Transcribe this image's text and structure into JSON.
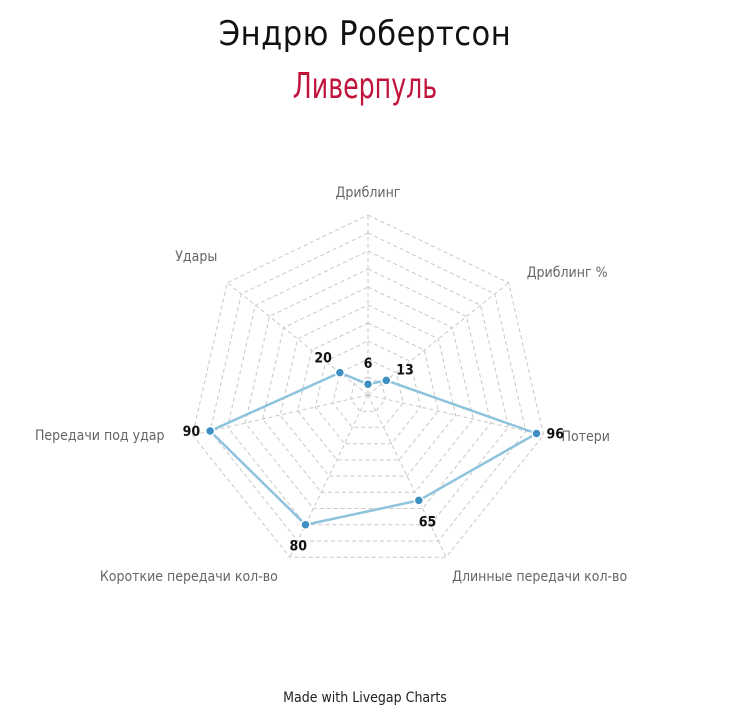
{
  "header": {
    "title": "Эндрю Робертсон",
    "subtitle": "Ливерпуль"
  },
  "footer": {
    "text": "Made with Livegap Charts"
  },
  "chart_data": {
    "type": "radar",
    "title": "Эндрю Робертсон",
    "subtitle": "Ливерпуль",
    "categories": [
      "Дриблинг",
      "Дриблинг %",
      "Потери",
      "Длинные передачи кол-во",
      "Короткие передачи кол-во",
      "Передачи под удар",
      "Удары"
    ],
    "series": [
      {
        "values": [
          6,
          13,
          96,
          65,
          80,
          90,
          20
        ]
      }
    ],
    "range": [
      0,
      100
    ],
    "grid_rings": 10,
    "grid": true,
    "colors": {
      "line": "#8ec3dd",
      "point": "#3e8fc4",
      "subtitle": "#c0143c",
      "grid": "#c8c8c8"
    }
  }
}
